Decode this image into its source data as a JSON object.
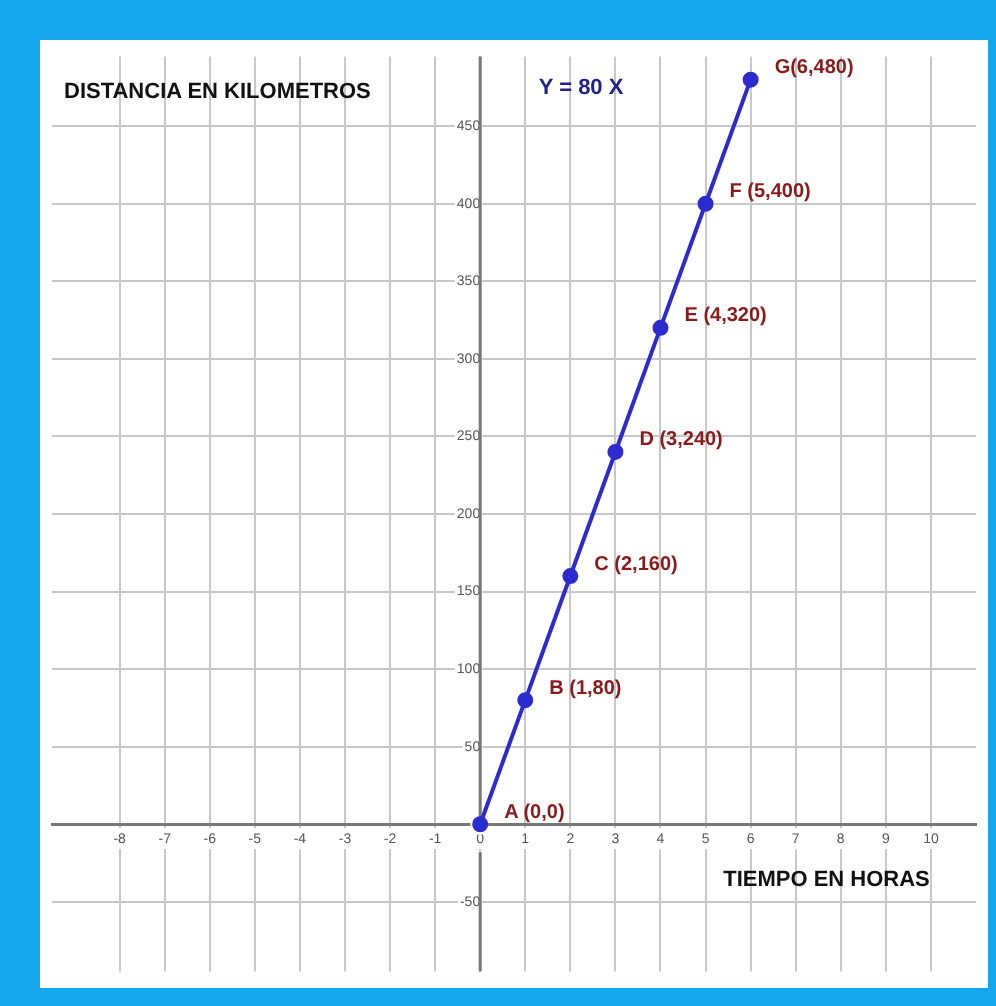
{
  "chart_data": {
    "type": "line",
    "xlabel": "TIEMPO EN HORAS",
    "ylabel": "DISTANCIA EN KILOMETROS",
    "x": [
      0,
      1,
      2,
      3,
      4,
      5,
      6
    ],
    "series": [
      {
        "color": "#2b2bd0",
        "values": [
          0,
          80,
          160,
          240,
          320,
          400,
          480
        ]
      }
    ],
    "xlim": [
      -9.5,
      11
    ],
    "xticks": [
      -8,
      -7,
      -6,
      -5,
      -4,
      -3,
      -2,
      -1,
      0,
      1,
      2,
      3,
      4,
      5,
      6,
      7,
      8,
      9,
      10
    ],
    "ylim": [
      -95,
      495
    ],
    "yticks": [
      -50,
      0,
      50,
      100,
      150,
      200,
      250,
      300,
      350,
      400,
      450
    ],
    "grid": true,
    "legend": false,
    "marker": "circle",
    "line_style": "solid",
    "annotations": [
      "Y = 80 X",
      {
        "text": "A (0,0)",
        "x": 0,
        "y": 0
      },
      {
        "text": "B (1,80)",
        "x": 1,
        "y": 80
      },
      {
        "text": "C (2,160)",
        "x": 2,
        "y": 160
      },
      {
        "text": "D (3,240)",
        "x": 3,
        "y": 240
      },
      {
        "text": "E (4,320)",
        "x": 4,
        "y": 320
      },
      {
        "text": "F (5,400)",
        "x": 5,
        "y": 400
      },
      {
        "text": "G(6,480)",
        "x": 6,
        "y": 480
      }
    ]
  }
}
